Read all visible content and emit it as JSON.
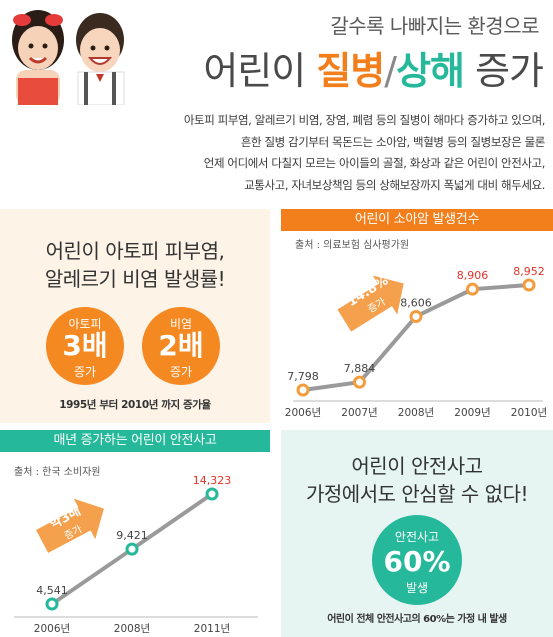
{
  "hero": {
    "subtitle": "갈수록 나빠지는 환경으로",
    "title_prefix": "어린이 ",
    "title_word1": "질병",
    "title_slash": "/",
    "title_word2": "상해",
    "title_suffix": " 증가",
    "intro_lines": [
      "아토피 피부염, 알레르기 비염, 장염, 폐렴 등의 질병이 해마다 증가하고 있으며,",
      "흔한 질병 감기부터 목돈드는 소아암, 백혈병 등의 질병보장은 물론",
      "언제 어디에서 다칠지 모르는 아이들의 골절, 화상과 같은 어린이 안전사고,",
      "교통사고, 자녀보상책임 등의 상해보장까지 폭넓게 대비 해두세요."
    ]
  },
  "allergy": {
    "title_line1": "어린이 아토피 피부염,",
    "title_line2": "알레르기 비염 발생률!",
    "badges": [
      {
        "top": "아토피",
        "big": "3배",
        "bottom": "증가"
      },
      {
        "top": "비염",
        "big": "2배",
        "bottom": "증가"
      }
    ],
    "note": "1995년 부터 2010년 까지 증가율",
    "accent_color": "#f48821"
  },
  "cancer": {
    "banner": "어린이 소아암 발생건수",
    "source": "출처 : 의료보험 심사평가원",
    "growth_label": "14.8%",
    "growth_sub": "증가",
    "accent_color": "#f27f1c"
  },
  "accidents": {
    "banner": "매년 증가하는 어린이 안전사고",
    "source": "출처 : 한국 소비자원",
    "growth_label": "약3배",
    "growth_sub": "증가",
    "accent_color": "#25b89a"
  },
  "home_safety": {
    "title_line1": "어린이 안전사고",
    "title_line2": "가정에서도 안심할 수 없다!",
    "badge_top": "안전사고",
    "badge_big": "60%",
    "badge_bottom": "발생",
    "note": "어린이 전체 안전사고의 60%는 가정 내 발생"
  },
  "chart_data": [
    {
      "type": "line",
      "title": "어린이 소아암 발생건수",
      "x": [
        "2006년",
        "2007년",
        "2008년",
        "2009년",
        "2010년"
      ],
      "values": [
        7798,
        7884,
        8606,
        8906,
        8952
      ],
      "value_labels": [
        "7,798",
        "7,884",
        "8,606",
        "8,906",
        "8,952"
      ],
      "highlight_color": "#e0342a",
      "line_color": "#9a9a9a",
      "point_color": "#f39c3c"
    },
    {
      "type": "line",
      "title": "매년 증가하는 어린이 안전사고",
      "x": [
        "2006년",
        "2008년",
        "2011년"
      ],
      "values": [
        4541,
        9421,
        14323
      ],
      "value_labels": [
        "4,541",
        "9,421",
        "14,323"
      ],
      "highlight_color": "#e0342a",
      "line_color": "#9a9a9a",
      "point_color": "#25b89a"
    }
  ]
}
